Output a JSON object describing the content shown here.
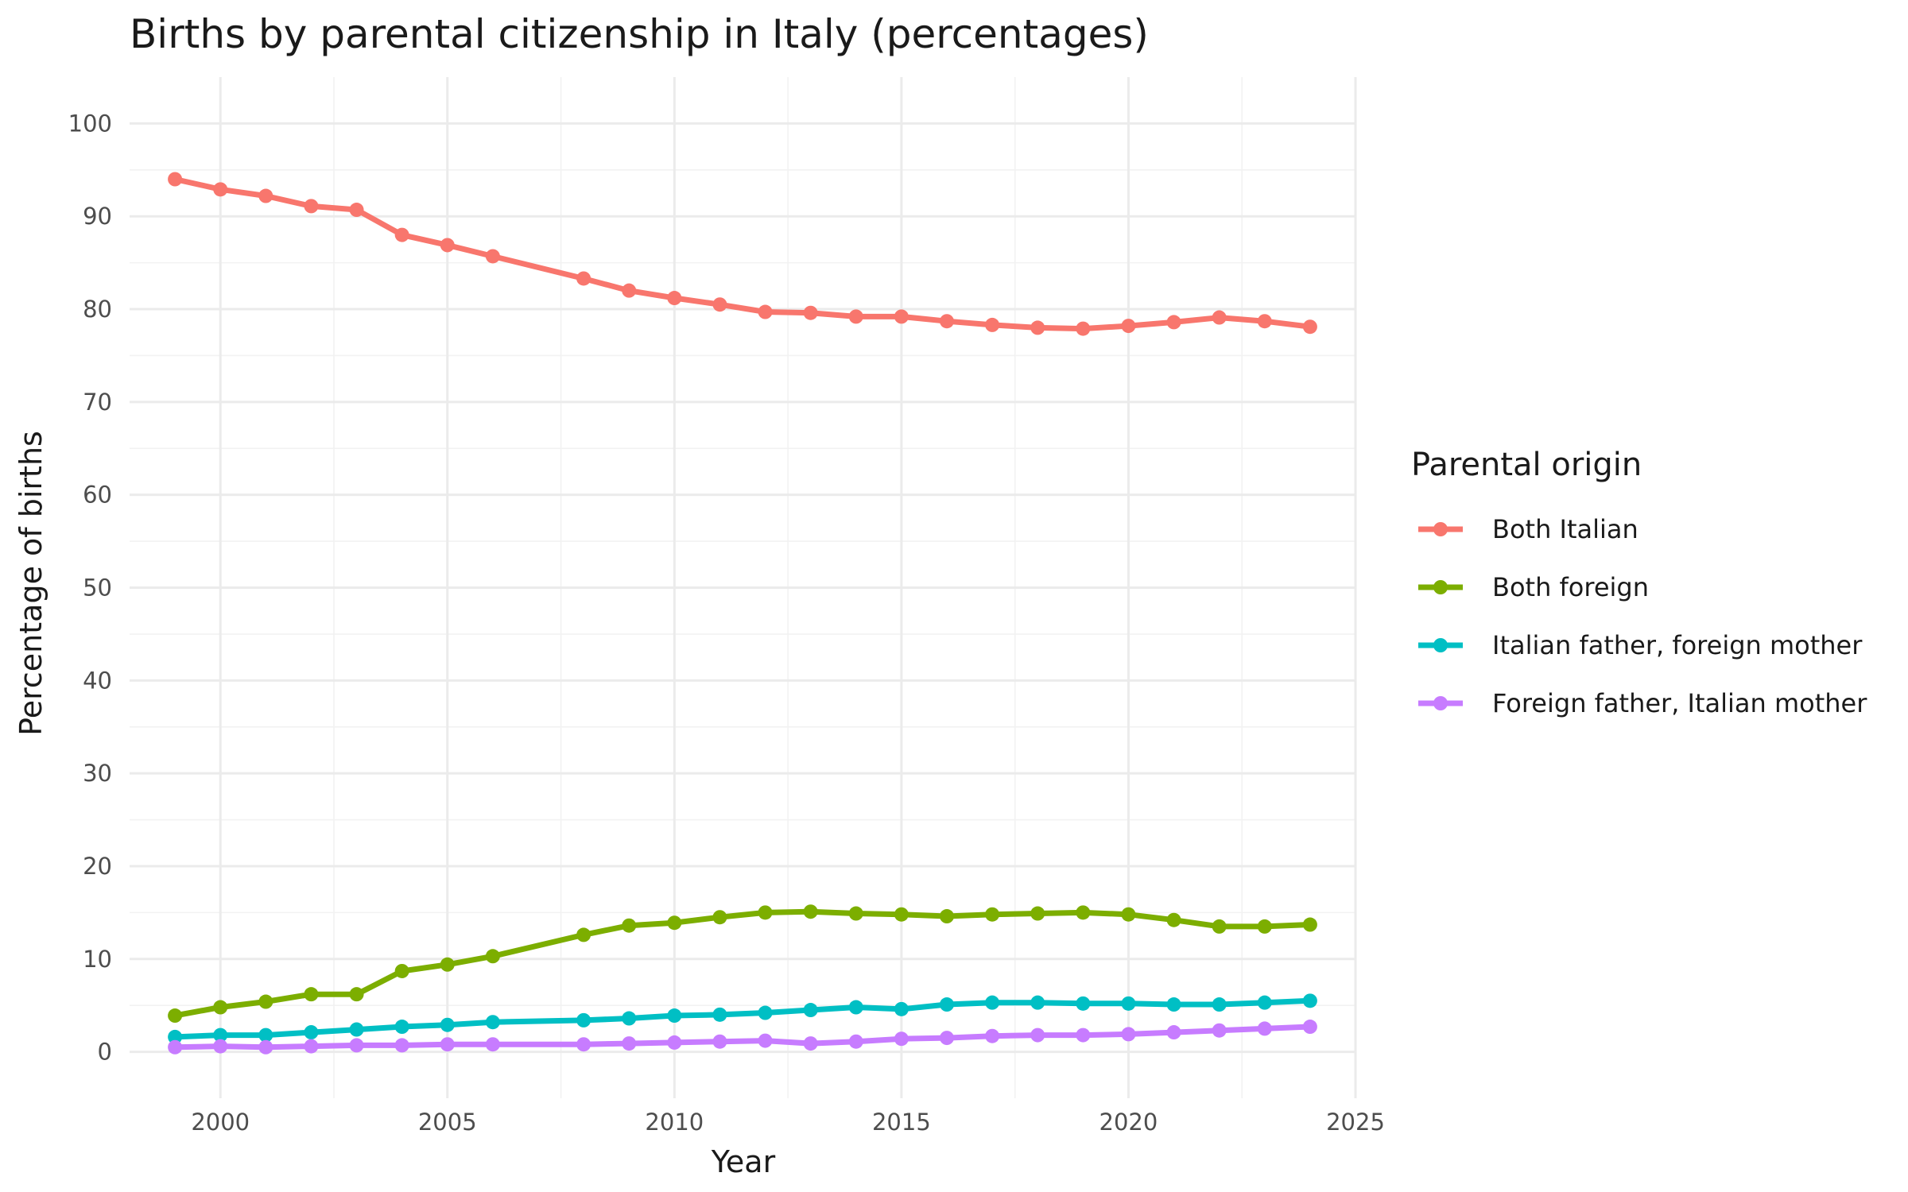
{
  "chart_data": {
    "type": "line",
    "title": "Births by parental citizenship in Italy (percentages)",
    "xlabel": "Year",
    "ylabel": "Percentage of births",
    "xlim": [
      1998,
      2025
    ],
    "ylim": [
      -5,
      105
    ],
    "x_ticks": [
      2000,
      2005,
      2010,
      2015,
      2020,
      2025
    ],
    "x_tick_labels": [
      "2000",
      "2005",
      "2010",
      "2015",
      "2020",
      "2025"
    ],
    "y_ticks": [
      0,
      10,
      20,
      30,
      40,
      50,
      60,
      70,
      80,
      90,
      100
    ],
    "y_tick_labels": [
      "0",
      "10",
      "20",
      "30",
      "40",
      "50",
      "60",
      "70",
      "80",
      "90",
      "100"
    ],
    "grid": true,
    "legend": {
      "title": "Parental origin",
      "placement": "right"
    },
    "x": [
      1999,
      2000,
      2001,
      2002,
      2003,
      2004,
      2005,
      2006,
      2008,
      2009,
      2010,
      2011,
      2012,
      2013,
      2014,
      2015,
      2016,
      2017,
      2018,
      2019,
      2020,
      2021,
      2022,
      2023,
      2024
    ],
    "series": [
      {
        "name": "Both Italian",
        "color": "#F8766D",
        "values": [
          94.0,
          92.9,
          92.2,
          91.1,
          90.7,
          88.0,
          86.9,
          85.7,
          83.3,
          82.0,
          81.2,
          80.5,
          79.7,
          79.6,
          79.2,
          79.2,
          78.7,
          78.3,
          78.0,
          77.9,
          78.2,
          78.6,
          79.1,
          78.7,
          78.1
        ]
      },
      {
        "name": "Both foreign",
        "color": "#7CAE00",
        "values": [
          3.9,
          4.8,
          5.4,
          6.2,
          6.2,
          8.7,
          9.4,
          10.3,
          12.6,
          13.6,
          13.9,
          14.5,
          15.0,
          15.1,
          14.9,
          14.8,
          14.6,
          14.8,
          14.9,
          15.0,
          14.8,
          14.2,
          13.5,
          13.5,
          13.7
        ]
      },
      {
        "name": "Italian father, foreign mother",
        "color": "#00BFC4",
        "values": [
          1.6,
          1.8,
          1.8,
          2.1,
          2.4,
          2.7,
          2.9,
          3.2,
          3.4,
          3.6,
          3.9,
          4.0,
          4.2,
          4.5,
          4.8,
          4.6,
          5.1,
          5.3,
          5.3,
          5.2,
          5.2,
          5.1,
          5.1,
          5.3,
          5.5
        ]
      },
      {
        "name": "Foreign father, Italian mother",
        "color": "#C77CFF",
        "values": [
          0.5,
          0.6,
          0.5,
          0.6,
          0.7,
          0.7,
          0.8,
          0.8,
          0.8,
          0.9,
          1.0,
          1.1,
          1.2,
          0.9,
          1.1,
          1.4,
          1.5,
          1.7,
          1.8,
          1.8,
          1.9,
          2.1,
          2.3,
          2.5,
          2.7
        ]
      }
    ]
  }
}
